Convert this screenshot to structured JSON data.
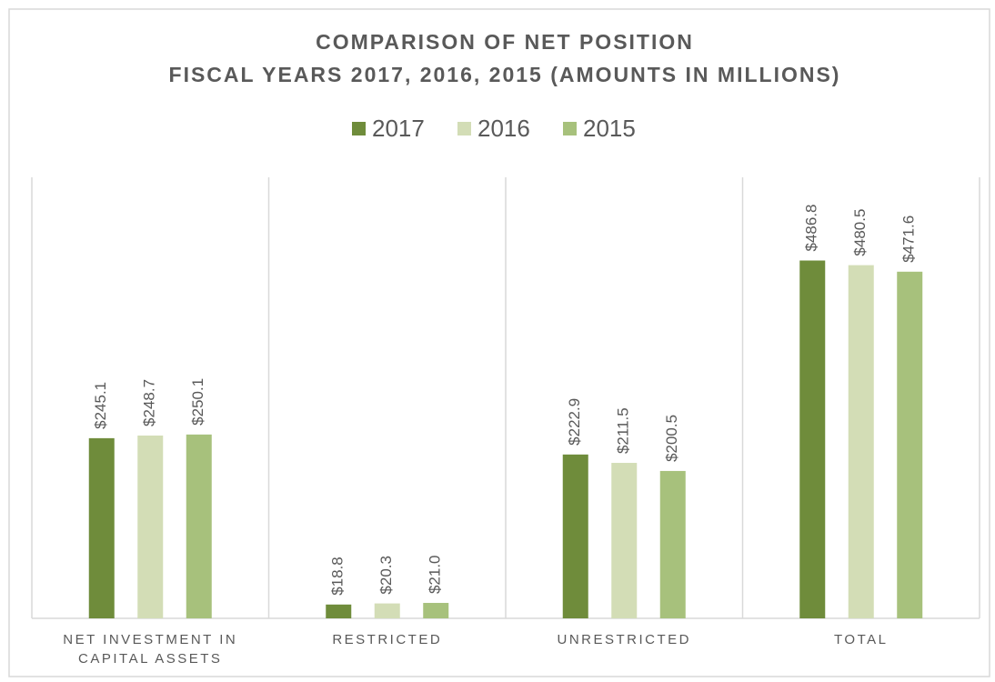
{
  "chart_data": {
    "type": "bar",
    "title": "COMPARISON OF NET POSITION",
    "subtitle": "FISCAL YEARS 2017, 2016, 2015 (AMOUNTS IN MILLIONS)",
    "categories": [
      "NET INVESTMENT IN CAPITAL ASSETS",
      "RESTRICTED",
      "UNRESTRICTED",
      "TOTAL"
    ],
    "series": [
      {
        "name": "2017",
        "color": "#6f8c3b",
        "values": [
          245.1,
          18.8,
          222.9,
          486.8
        ],
        "value_labels": [
          "$245.1",
          "$18.8",
          "$222.9",
          "$486.8"
        ]
      },
      {
        "name": "2016",
        "color": "#d3ddb6",
        "values": [
          248.7,
          20.3,
          211.5,
          480.5
        ],
        "value_labels": [
          "$248.7",
          "$20.3",
          "$211.5",
          "$480.5"
        ]
      },
      {
        "name": "2015",
        "color": "#a7c17c",
        "values": [
          250.1,
          21.0,
          200.5,
          471.6
        ],
        "value_labels": [
          "$250.1",
          "$21.0",
          "$200.5",
          "$471.6"
        ]
      }
    ],
    "ylim": [
      0,
      600
    ],
    "legend": "top"
  }
}
